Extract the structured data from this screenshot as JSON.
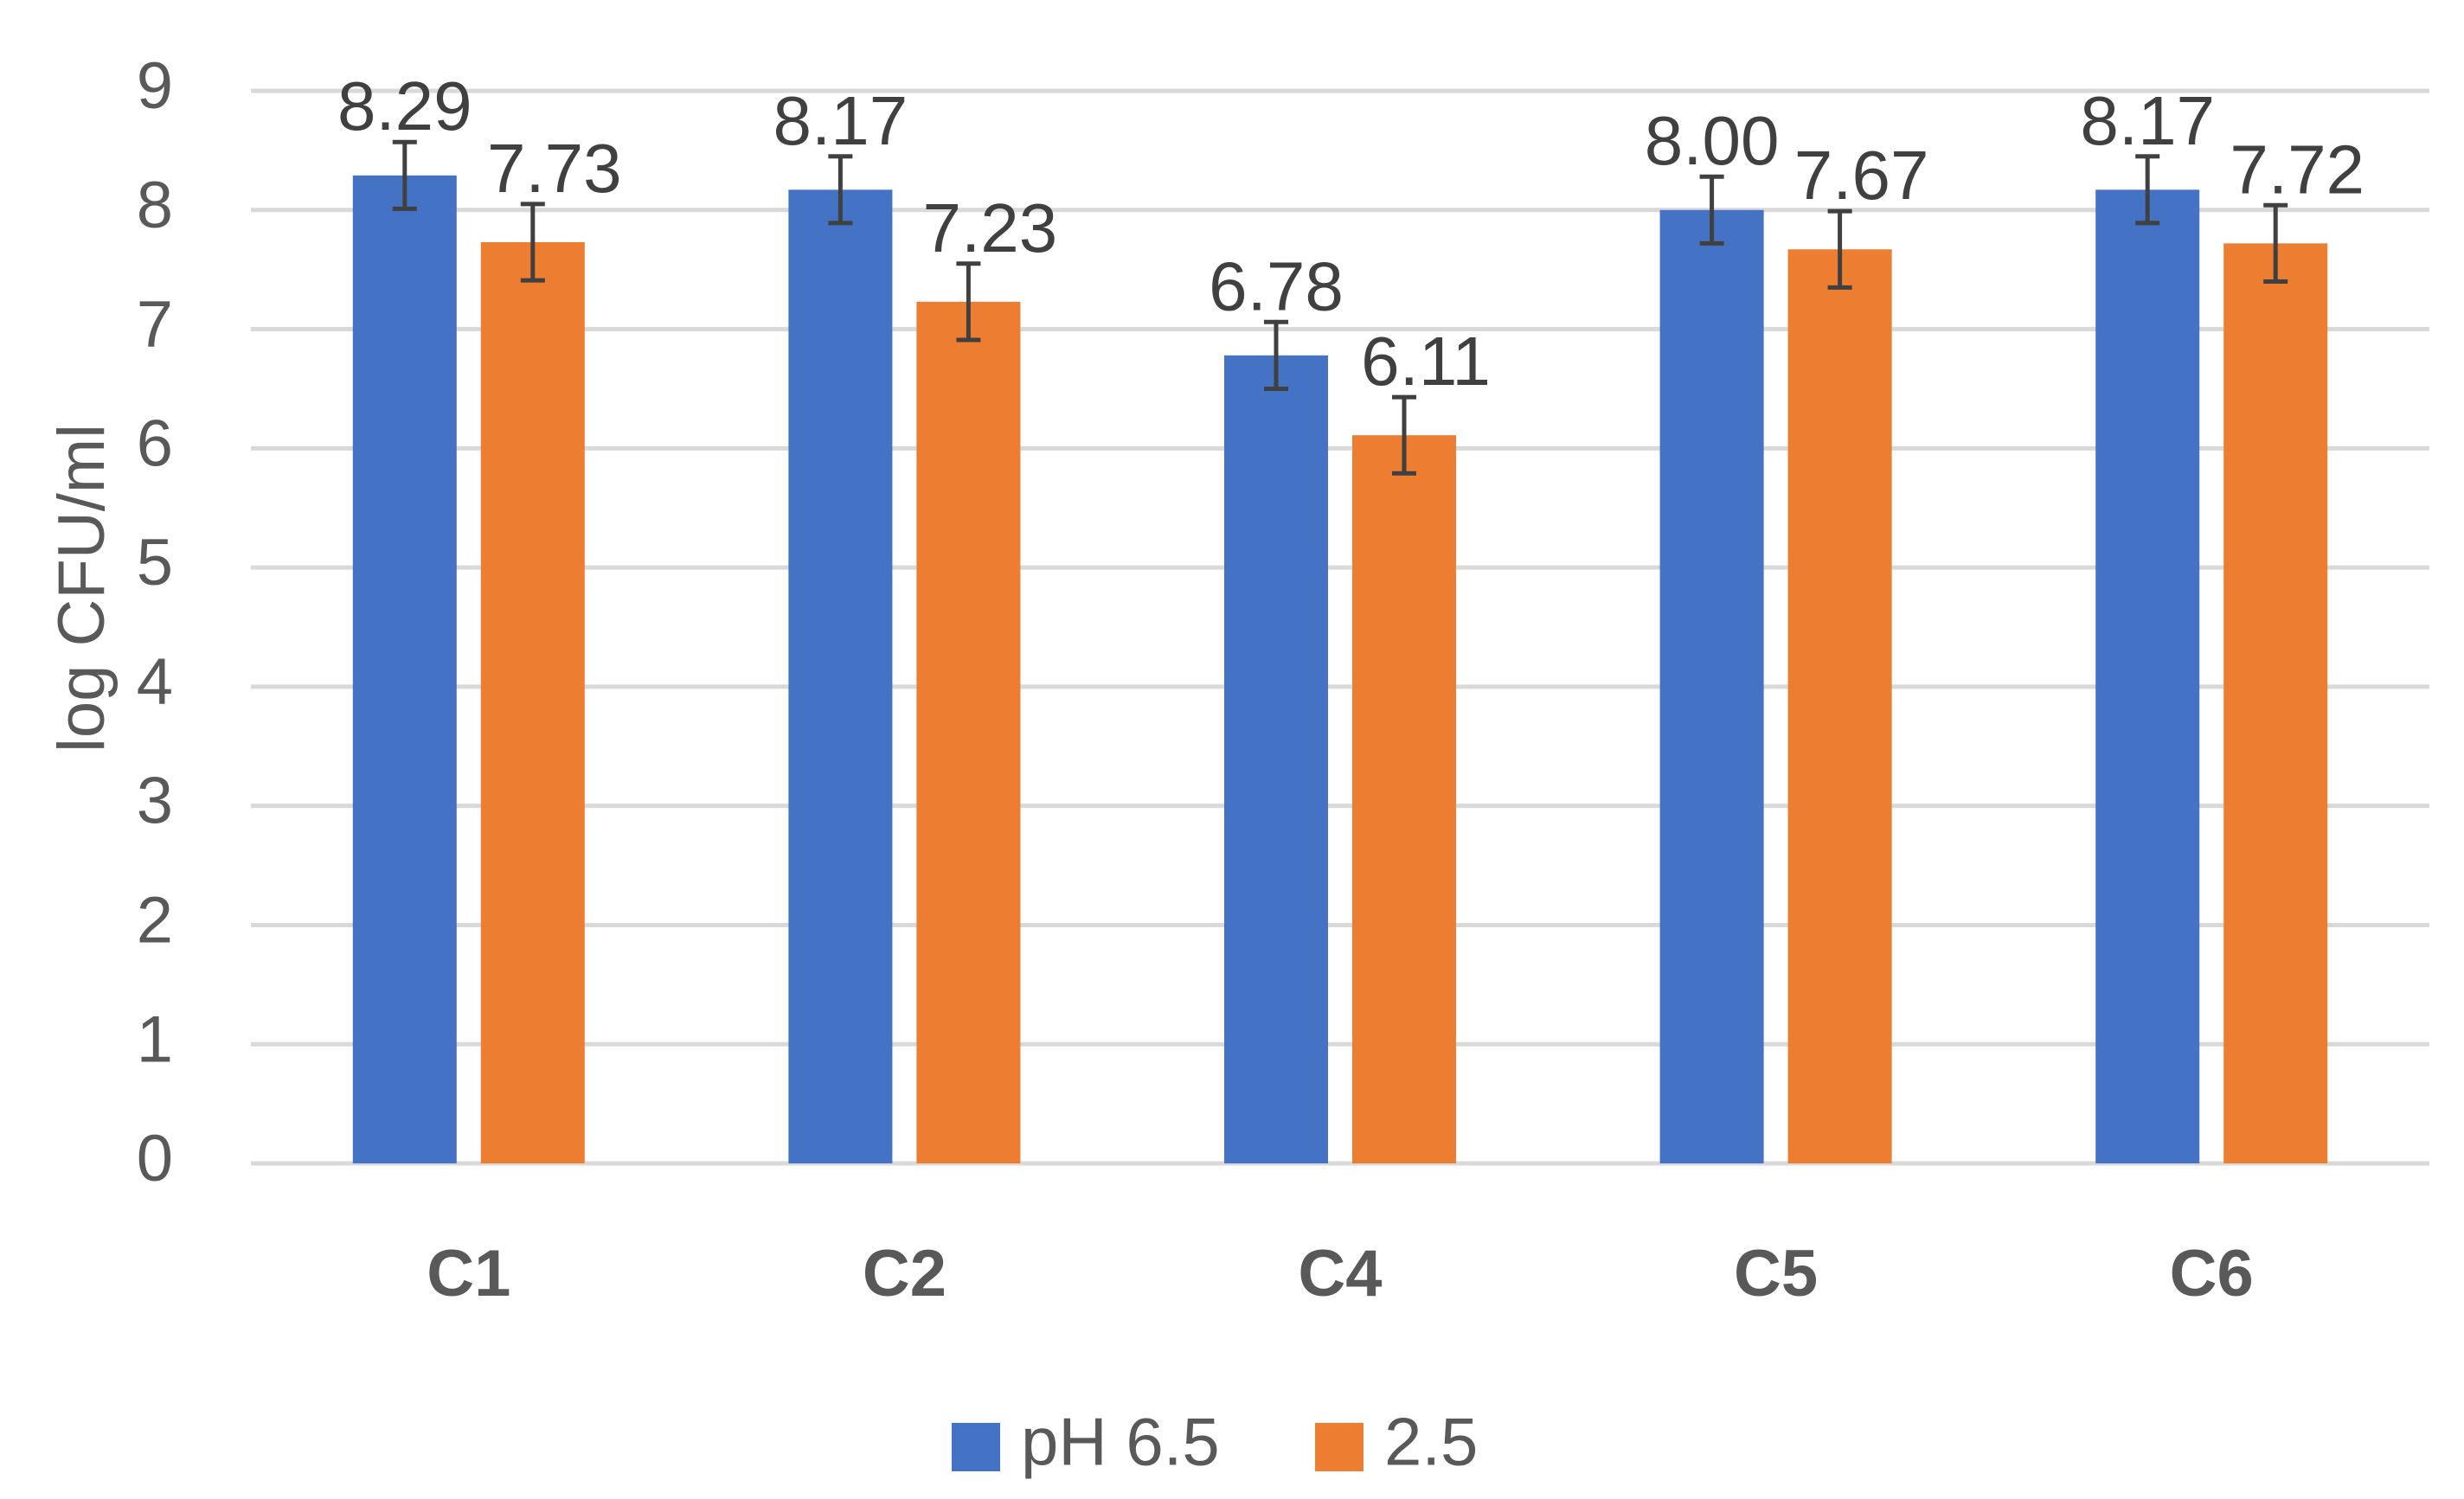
{
  "chart_data": {
    "type": "bar",
    "title": "",
    "xlabel": "",
    "ylabel": "log CFU/ml",
    "ylim": [
      0,
      9
    ],
    "yticks": [
      "0",
      "1",
      "2",
      "3",
      "4",
      "5",
      "6",
      "7",
      "8",
      "9"
    ],
    "categories": [
      "C1",
      "C2",
      "C4",
      "C5",
      "C6"
    ],
    "series": [
      {
        "name": "pH 6.5",
        "color": "#4472C4",
        "values": [
          8.29,
          8.17,
          6.78,
          8.0,
          8.17
        ],
        "labels": [
          "8.29",
          "8.17",
          "6.78",
          "8.00",
          "8.17"
        ],
        "errors": [
          0.28,
          0.28,
          0.28,
          0.28,
          0.28
        ]
      },
      {
        "name": "2.5",
        "color": "#ED7D31",
        "values": [
          7.73,
          7.23,
          6.11,
          7.67,
          7.72
        ],
        "labels": [
          "7.73",
          "7.23",
          "6.11",
          "7.67",
          "7.72"
        ],
        "errors": [
          0.32,
          0.32,
          0.32,
          0.32,
          0.32
        ]
      }
    ],
    "grid": true,
    "legend_position": "bottom"
  }
}
